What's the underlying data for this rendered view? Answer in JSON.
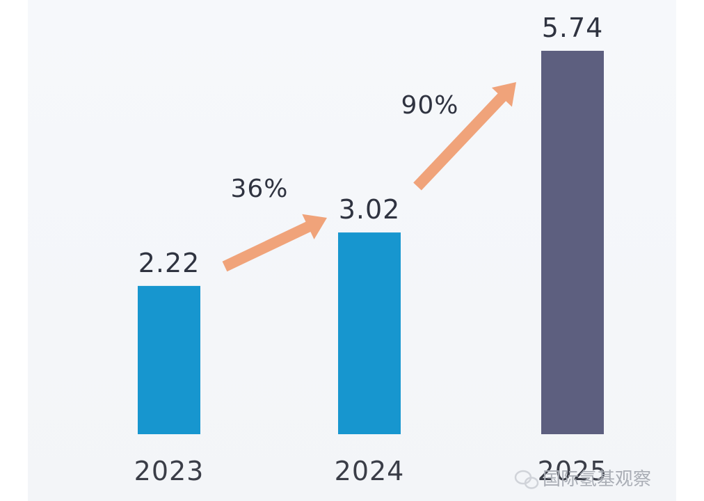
{
  "chart_data": {
    "type": "bar",
    "categories": [
      "2023",
      "2024",
      "2025"
    ],
    "values": [
      2.22,
      3.02,
      5.74
    ],
    "value_labels": [
      "2.22",
      "3.02",
      "5.74"
    ],
    "growth_annotations": [
      {
        "from": "2023",
        "to": "2024",
        "label": "36%"
      },
      {
        "from": "2024",
        "to": "2025",
        "label": "90%"
      }
    ],
    "bar_colors": [
      "#1796cf",
      "#1796cf",
      "#5d5f7f"
    ],
    "arrow_color": "#f0a37a",
    "grid": false,
    "ylim": [
      0,
      6
    ]
  },
  "watermark": {
    "icon": "wechat-logo-icon",
    "text": "国际氢基观察"
  }
}
